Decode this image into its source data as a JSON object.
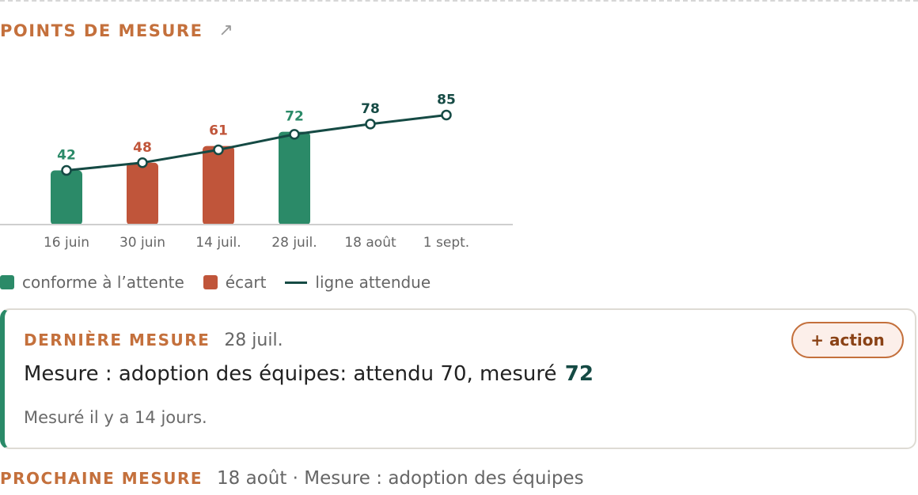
{
  "header": {
    "title": "POINTS DE MESURE",
    "expand_icon": "↗"
  },
  "colors": {
    "conforme": "#2b8a68",
    "ecart": "#c0553a",
    "line": "#154a44",
    "label_accent": "#c4703c"
  },
  "chart_data": {
    "type": "bar",
    "categories": [
      "16 juin",
      "30 juin",
      "14 juil.",
      "28 juil.",
      "18 août",
      "1 sept."
    ],
    "series": [
      {
        "name": "mesure",
        "values": [
          42,
          48,
          61,
          72,
          null,
          null
        ],
        "status": [
          "conforme",
          "ecart",
          "ecart",
          "conforme",
          null,
          null
        ]
      },
      {
        "name": "ligne attendue",
        "type": "line",
        "values": [
          42,
          48,
          58,
          70,
          78,
          85
        ]
      }
    ],
    "labels": [
      {
        "text": "42",
        "status": "conforme"
      },
      {
        "text": "48",
        "status": "ecart"
      },
      {
        "text": "61",
        "status": "ecart"
      },
      {
        "text": "72",
        "status": "conforme"
      },
      {
        "text": "78",
        "status": "line"
      },
      {
        "text": "85",
        "status": "line"
      }
    ],
    "ylim": [
      0,
      100
    ],
    "grid": false,
    "legend": "bottom-left"
  },
  "legend": [
    {
      "label": "conforme à l’attente",
      "kind": "swatch",
      "color": "#2b8a68"
    },
    {
      "label": "écart",
      "kind": "swatch",
      "color": "#c0553a"
    },
    {
      "label": "ligne attendue",
      "kind": "line",
      "color": "#154a44"
    }
  ],
  "last_measure": {
    "title": "DERNIÈRE MESURE",
    "date": "28 juil.",
    "headline": "Mesure : adoption des équipes: attendu 70, mesuré",
    "value": "72",
    "sub": "Mesuré il y a 14 jours.",
    "action_label": "+ action"
  },
  "next_measure": {
    "title": "PROCHAINE MESURE",
    "text": "18 août · Mesure : adoption des équipes"
  }
}
